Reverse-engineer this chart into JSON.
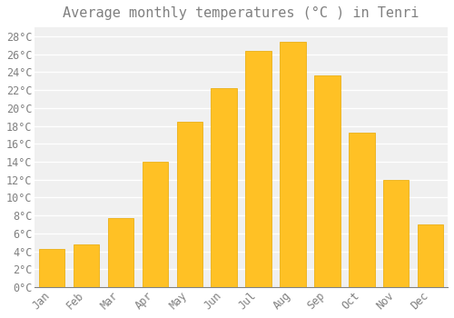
{
  "title": "Average monthly temperatures (°C ) in Tenri",
  "months": [
    "Jan",
    "Feb",
    "Mar",
    "Apr",
    "May",
    "Jun",
    "Jul",
    "Aug",
    "Sep",
    "Oct",
    "Nov",
    "Dec"
  ],
  "values": [
    4.3,
    4.8,
    7.7,
    14.0,
    18.5,
    22.2,
    26.4,
    27.4,
    23.6,
    17.2,
    12.0,
    7.0
  ],
  "bar_color": "#FFC125",
  "bar_edge_color": "#E8A800",
  "figure_bg": "#FFFFFF",
  "plot_bg": "#F0F0F0",
  "grid_color": "#FFFFFF",
  "text_color": "#808080",
  "ylim": [
    0,
    29
  ],
  "yticks": [
    0,
    2,
    4,
    6,
    8,
    10,
    12,
    14,
    16,
    18,
    20,
    22,
    24,
    26,
    28
  ],
  "title_fontsize": 11,
  "tick_fontsize": 8.5,
  "font_family": "monospace"
}
